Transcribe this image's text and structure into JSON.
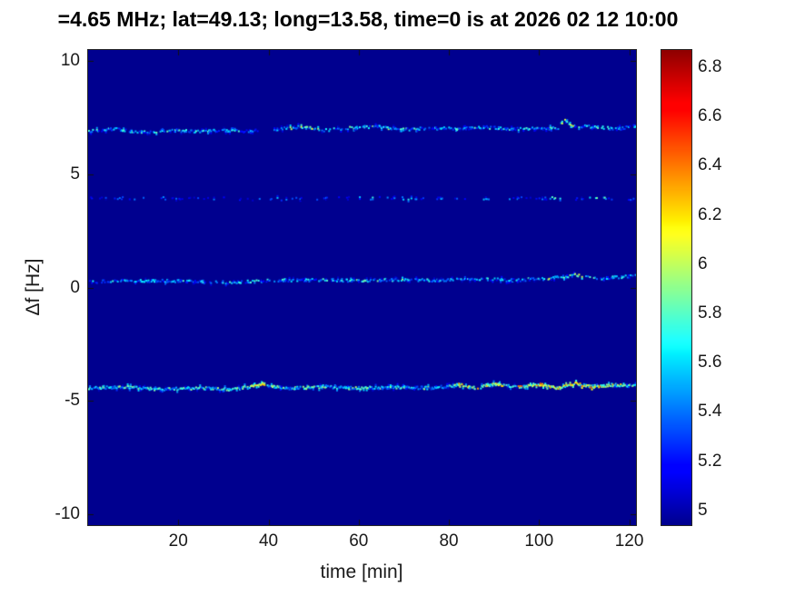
{
  "chart_data": {
    "type": "heatmap",
    "title": "=4.65 MHz;  lat=49.13; long=13.58, time=0 is at 2026 02 12 10:00",
    "xlabel": "time [min]",
    "ylabel": "Δf [Hz]",
    "xlim": [
      0,
      121.5
    ],
    "ylim": [
      -10.5,
      10.5
    ],
    "xticks": [
      20,
      40,
      60,
      80,
      100,
      120
    ],
    "yticks": [
      -10,
      -5,
      0,
      5,
      10
    ],
    "colormap": "jet",
    "clim": [
      4.94,
      6.87
    ],
    "colorbar_ticks": [
      5,
      5.2,
      5.4,
      5.6,
      5.8,
      6,
      6.2,
      6.4,
      6.6,
      6.8
    ],
    "background_value": 4.94,
    "grid": false,
    "legend": "none",
    "traces": [
      {
        "name": "echo-trace-plus-7Hz",
        "df_waypoints": [
          [
            0,
            6.9
          ],
          [
            6,
            7.0
          ],
          [
            12,
            6.85
          ],
          [
            18,
            6.95
          ],
          [
            24,
            6.88
          ],
          [
            30,
            6.95
          ],
          [
            34,
            6.9
          ],
          [
            37,
            6.95
          ],
          [
            42,
            7.0
          ],
          [
            48,
            7.12
          ],
          [
            52,
            6.95
          ],
          [
            58,
            7.05
          ],
          [
            64,
            7.1
          ],
          [
            70,
            6.98
          ],
          [
            76,
            7.05
          ],
          [
            82,
            7.0
          ],
          [
            88,
            7.08
          ],
          [
            94,
            7.0
          ],
          [
            100,
            7.02
          ],
          [
            104,
            7.05
          ],
          [
            105.5,
            7.4
          ],
          [
            107,
            7.15
          ],
          [
            112,
            7.1
          ],
          [
            117,
            7.0
          ],
          [
            121.5,
            7.15
          ]
        ],
        "density": 0.75,
        "intensity": [
          5.15,
          5.85
        ],
        "gaps": [
          [
            37.5,
            41.0
          ]
        ],
        "hot_regions": [
          [
            44,
            52,
            0.25
          ],
          [
            56,
            70,
            0.15
          ],
          [
            104,
            108,
            0.3
          ]
        ]
      },
      {
        "name": "echo-trace-plus-4Hz",
        "df_waypoints": [
          [
            0,
            3.95
          ],
          [
            20,
            3.95
          ],
          [
            40,
            3.9
          ],
          [
            60,
            3.95
          ],
          [
            80,
            3.92
          ],
          [
            100,
            3.95
          ],
          [
            121.5,
            3.9
          ]
        ],
        "density": 0.22,
        "intensity": [
          5.05,
          5.5
        ],
        "gaps": [],
        "hot_regions": [
          [
            40,
            42,
            0.3
          ],
          [
            60,
            64,
            0.35
          ],
          [
            69,
            73,
            0.45
          ],
          [
            78,
            81,
            0.4
          ],
          [
            87,
            91,
            0.5
          ],
          [
            102,
            107,
            0.5
          ],
          [
            111,
            115,
            0.45
          ]
        ]
      },
      {
        "name": "echo-trace-0Hz",
        "df_waypoints": [
          [
            0,
            0.25
          ],
          [
            10,
            0.3
          ],
          [
            20,
            0.28
          ],
          [
            30,
            0.22
          ],
          [
            40,
            0.3
          ],
          [
            50,
            0.33
          ],
          [
            60,
            0.3
          ],
          [
            70,
            0.35
          ],
          [
            78,
            0.3
          ],
          [
            86,
            0.38
          ],
          [
            94,
            0.32
          ],
          [
            102,
            0.4
          ],
          [
            108,
            0.55
          ],
          [
            112,
            0.4
          ],
          [
            117,
            0.45
          ],
          [
            121.5,
            0.5
          ]
        ],
        "density": 0.7,
        "intensity": [
          5.15,
          5.8
        ],
        "gaps": [],
        "hot_regions": [
          [
            55,
            70,
            0.15
          ],
          [
            100,
            112,
            0.3
          ]
        ]
      },
      {
        "name": "echo-trace-minus-4p5Hz",
        "df_waypoints": [
          [
            0,
            -4.45
          ],
          [
            8,
            -4.4
          ],
          [
            16,
            -4.5
          ],
          [
            24,
            -4.45
          ],
          [
            32,
            -4.5
          ],
          [
            38,
            -4.3
          ],
          [
            44,
            -4.45
          ],
          [
            52,
            -4.4
          ],
          [
            60,
            -4.45
          ],
          [
            68,
            -4.4
          ],
          [
            76,
            -4.45
          ],
          [
            82,
            -4.3
          ],
          [
            86,
            -4.45
          ],
          [
            90,
            -4.25
          ],
          [
            95,
            -4.4
          ],
          [
            100,
            -4.3
          ],
          [
            104,
            -4.45
          ],
          [
            108,
            -4.25
          ],
          [
            112,
            -4.4
          ],
          [
            116,
            -4.3
          ],
          [
            121.5,
            -4.35
          ]
        ],
        "density": 0.95,
        "intensity": [
          5.3,
          6.0
        ],
        "gaps": [],
        "hot_regions": [
          [
            36,
            39,
            0.5
          ],
          [
            82,
            92,
            0.4
          ],
          [
            95,
            120,
            0.45
          ]
        ]
      }
    ]
  }
}
